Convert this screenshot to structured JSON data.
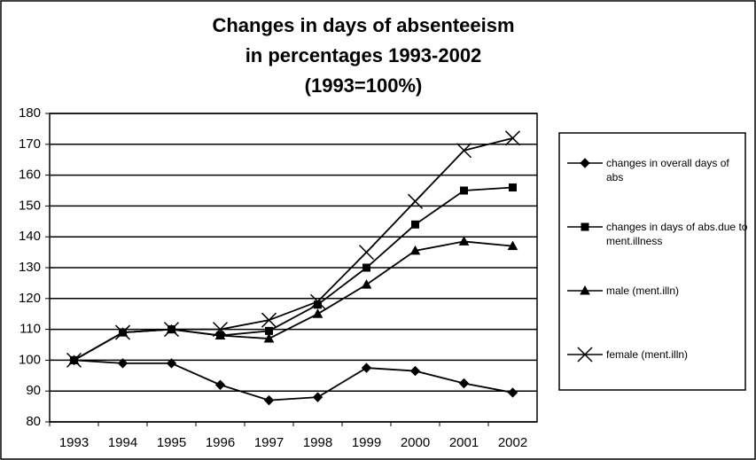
{
  "chart_data": {
    "type": "line",
    "title": [
      "Changes in days of absenteeism",
      "in percentages 1993-2002",
      "(1993=100%)"
    ],
    "categories": [
      "1993",
      "1994",
      "1995",
      "1996",
      "1997",
      "1998",
      "1999",
      "2000",
      "2001",
      "2002"
    ],
    "series": [
      {
        "name": "changes in overall days of abs",
        "color": "#000000",
        "marker": "diamond",
        "values": [
          100,
          99,
          99,
          92,
          87,
          88,
          97.5,
          96.5,
          92.5,
          89.5
        ]
      },
      {
        "name": "changes in days of abs.due to ment.illness",
        "color": "#000000",
        "marker": "square",
        "values": [
          100,
          109,
          110,
          108,
          109.5,
          118,
          130,
          144,
          155,
          156
        ]
      },
      {
        "name": "male (ment.illn)",
        "color": "#000000",
        "marker": "triangle",
        "values": [
          100,
          109,
          110,
          108,
          107,
          115,
          124.5,
          135.5,
          138.5,
          137
        ]
      },
      {
        "name": "female (ment.illn)",
        "color": "#000000",
        "marker": "x",
        "values": [
          100,
          109,
          110,
          110,
          113,
          119,
          135,
          151.5,
          168,
          172
        ]
      }
    ],
    "ylim": [
      80,
      180
    ],
    "yticks": [
      80,
      90,
      100,
      110,
      120,
      130,
      140,
      150,
      160,
      170,
      180
    ],
    "grid": true,
    "legend": "right"
  }
}
